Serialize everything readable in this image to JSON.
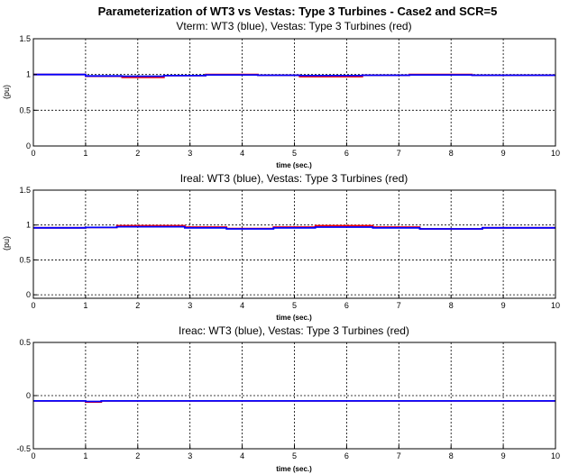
{
  "figure_title": "Parameterization of WT3 vs Vestas: Type 3 Turbines - Case2 and SCR=5",
  "colors": {
    "series_wt3": "#0000ff",
    "series_vestas": "#ff0000",
    "grid": "#000000",
    "axes": "#000000"
  },
  "chart_data": [
    {
      "type": "line",
      "title": "Vterm: WT3 (blue), Vestas: Type 3 Turbines (red)",
      "xlabel": "time (sec.)",
      "ylabel": "(pu)",
      "xlim": [
        0,
        10
      ],
      "ylim": [
        0,
        1.5
      ],
      "xticks": [
        0,
        1,
        2,
        3,
        4,
        5,
        6,
        7,
        8,
        9,
        10
      ],
      "yticks": [
        0,
        0.5,
        1,
        1.5
      ],
      "ytick_labels": [
        "0",
        "0.5",
        "1",
        "1.5"
      ],
      "grid": true,
      "series": [
        {
          "color": "red",
          "x": [
            0,
            1,
            1.0,
            1.7,
            1.7,
            2.5,
            2.5,
            3.3,
            3.3,
            4.3,
            4.3,
            5.1,
            5.1,
            6.3,
            6.3,
            7.2,
            7.2,
            8.4,
            8.4,
            10
          ],
          "y": [
            1.0,
            1.0,
            0.975,
            0.975,
            0.96,
            0.96,
            0.985,
            0.985,
            1.0,
            1.0,
            0.99,
            0.99,
            0.97,
            0.97,
            0.99,
            0.99,
            1.0,
            1.0,
            0.99,
            0.99
          ]
        },
        {
          "color": "blue",
          "x": [
            0,
            1,
            1.0,
            1.7,
            1.7,
            2.5,
            2.5,
            3.3,
            3.3,
            4.3,
            4.3,
            5.1,
            5.1,
            6.3,
            6.3,
            7.2,
            7.2,
            8.4,
            8.4,
            10
          ],
          "y": [
            1.0,
            1.0,
            0.98,
            0.98,
            0.975,
            0.975,
            0.985,
            0.985,
            0.995,
            0.995,
            0.99,
            0.99,
            0.985,
            0.985,
            0.99,
            0.99,
            0.995,
            0.995,
            0.99,
            0.99
          ]
        }
      ]
    },
    {
      "type": "line",
      "title": "Ireal: WT3 (blue), Vestas: Type 3 Turbines (red)",
      "xlabel": "time (sec.)",
      "ylabel": "(pu)",
      "xlim": [
        0,
        10
      ],
      "ylim": [
        -0.05,
        1.5
      ],
      "xticks": [
        0,
        1,
        2,
        3,
        4,
        5,
        6,
        7,
        8,
        9,
        10
      ],
      "yticks": [
        0,
        0.5,
        1,
        1.5
      ],
      "ytick_labels": [
        "0",
        "0.5",
        "1",
        "1.5"
      ],
      "grid": true,
      "series": [
        {
          "color": "red",
          "x": [
            0,
            1,
            1.0,
            1.6,
            1.6,
            2.9,
            2.9,
            3.7,
            3.7,
            4.6,
            4.6,
            5.4,
            5.4,
            6.5,
            6.5,
            7.4,
            7.4,
            8.6,
            8.6,
            10
          ],
          "y": [
            0.96,
            0.96,
            0.965,
            0.965,
            0.99,
            0.99,
            0.97,
            0.97,
            0.95,
            0.95,
            0.97,
            0.97,
            0.99,
            0.99,
            0.97,
            0.97,
            0.945,
            0.945,
            0.96,
            0.96
          ]
        },
        {
          "color": "blue",
          "x": [
            0,
            1,
            1.0,
            1.6,
            1.6,
            2.9,
            2.9,
            3.7,
            3.7,
            4.6,
            4.6,
            5.4,
            5.4,
            6.5,
            6.5,
            7.4,
            7.4,
            8.6,
            8.6,
            10
          ],
          "y": [
            0.96,
            0.96,
            0.965,
            0.965,
            0.975,
            0.975,
            0.96,
            0.96,
            0.945,
            0.945,
            0.96,
            0.96,
            0.97,
            0.97,
            0.96,
            0.96,
            0.945,
            0.945,
            0.96,
            0.96
          ]
        }
      ]
    },
    {
      "type": "line",
      "title": "Ireac: WT3 (blue), Vestas: Type 3 Turbines (red)",
      "xlabel": "time (sec.)",
      "ylabel": "",
      "xlim": [
        0,
        10
      ],
      "ylim": [
        -0.5,
        0.5
      ],
      "xticks": [
        0,
        1,
        2,
        3,
        4,
        5,
        6,
        7,
        8,
        9,
        10
      ],
      "yticks": [
        -0.5,
        0,
        0.5
      ],
      "ytick_labels": [
        "-0.5",
        "0",
        "0.5"
      ],
      "grid": true,
      "series": [
        {
          "color": "red",
          "x": [
            0,
            1.0,
            1.0,
            1.3,
            1.3,
            10
          ],
          "y": [
            -0.05,
            -0.05,
            -0.06,
            -0.06,
            -0.05,
            -0.05
          ]
        },
        {
          "color": "blue",
          "x": [
            0,
            1.0,
            1.0,
            1.3,
            1.3,
            10
          ],
          "y": [
            -0.05,
            -0.05,
            -0.055,
            -0.055,
            -0.05,
            -0.05
          ]
        }
      ]
    }
  ]
}
